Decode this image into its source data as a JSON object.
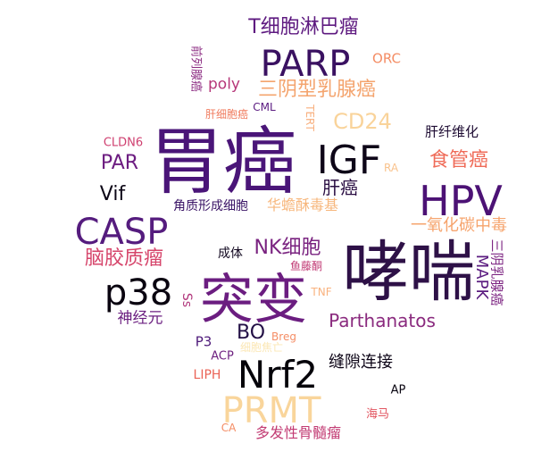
{
  "words": [
    {
      "id": "weiai",
      "text": "胃癌",
      "color": "#4a1578"
    },
    {
      "id": "xiaochuan",
      "text": "哮喘",
      "color": "#2e1147"
    },
    {
      "id": "tubian",
      "text": "突变",
      "color": "#6b1d80"
    },
    {
      "id": "hpv",
      "text": "HPV",
      "color": "#4c1275"
    },
    {
      "id": "igf",
      "text": "IGF",
      "color": "#0e0618"
    },
    {
      "id": "parp",
      "text": "PARP",
      "color": "#3a1161"
    },
    {
      "id": "casp",
      "text": "CASP",
      "color": "#551c7e"
    },
    {
      "id": "p38",
      "text": "p38",
      "color": "#0a0410"
    },
    {
      "id": "nrf2",
      "text": "Nrf2",
      "color": "#05030a"
    },
    {
      "id": "prmt",
      "text": "PRMT",
      "color": "#f9d59b"
    },
    {
      "id": "tlymph",
      "text": "T细胞淋巴瘤",
      "color": "#5e1a80"
    },
    {
      "id": "sanyin",
      "text": "三阴型乳腺癌",
      "color": "#f4a46e"
    },
    {
      "id": "cd24",
      "text": "CD24",
      "color": "#f9d39a"
    },
    {
      "id": "shiguan",
      "text": "食管癌",
      "color": "#ef6b58"
    },
    {
      "id": "ganai",
      "text": "肝癌",
      "color": "#2b0f44"
    },
    {
      "id": "par",
      "text": "PAR",
      "color": "#6d1d81"
    },
    {
      "id": "vif",
      "text": "Vif",
      "color": "#0c0616"
    },
    {
      "id": "jiaozhi",
      "text": "脑胶质瘤",
      "color": "#d6456b"
    },
    {
      "id": "nk",
      "text": "NK细胞",
      "color": "#7a2380"
    },
    {
      "id": "parth",
      "text": "Parthanatos",
      "color": "#8a2a7e"
    },
    {
      "id": "co",
      "text": "一氧化碳中毒",
      "color": "#f6a46d"
    },
    {
      "id": "huachan",
      "text": "华蟾酥毒基",
      "color": "#f7b77d"
    },
    {
      "id": "jiaozhixi",
      "text": "角质形成细胞",
      "color": "#3a1466"
    },
    {
      "id": "bo",
      "text": "BO",
      "color": "#231046"
    },
    {
      "id": "fengxi",
      "text": "缝隙连接",
      "color": "#0e0618"
    },
    {
      "id": "poly",
      "text": "poly",
      "color": "#b63779"
    },
    {
      "id": "orc",
      "text": "ORC",
      "color": "#f48d65"
    },
    {
      "id": "qianliexian",
      "text": "前列腺癌",
      "color": "#8b2a81"
    },
    {
      "id": "ganxibao",
      "text": "肝细胞癌",
      "color": "#f07c5f"
    },
    {
      "id": "cml",
      "text": "CML",
      "color": "#5a1a80"
    },
    {
      "id": "tert",
      "text": "TERT",
      "color": "#f8b07f"
    },
    {
      "id": "ganxianwei",
      "text": "肝纤维化",
      "color": "#1e0c33"
    },
    {
      "id": "cldn6",
      "text": "CLDN6",
      "color": "#cf4070"
    },
    {
      "id": "ra",
      "text": "RA",
      "color": "#f9c28c"
    },
    {
      "id": "chengti",
      "text": "成体",
      "color": "#120820"
    },
    {
      "id": "yuteng",
      "text": "鱼藤酮",
      "color": "#c13b75"
    },
    {
      "id": "shenjing",
      "text": "神经元",
      "color": "#6b1f80"
    },
    {
      "id": "ss",
      "text": "Ss",
      "color": "#b0347a"
    },
    {
      "id": "tnf",
      "text": "TNF",
      "color": "#f9b27e"
    },
    {
      "id": "mapk",
      "text": "MAPK",
      "color": "#5b1c80"
    },
    {
      "id": "sanyinru",
      "text": "三阴乳腺癌",
      "color": "#7d2582"
    },
    {
      "id": "p3",
      "text": "P3",
      "color": "#4e1a7a"
    },
    {
      "id": "breg",
      "text": "Breg",
      "color": "#f58e66"
    },
    {
      "id": "acp",
      "text": "ACP",
      "color": "#6f2381"
    },
    {
      "id": "liph",
      "text": "LIPH",
      "color": "#ea6356"
    },
    {
      "id": "faint",
      "text": "细胞焦亡",
      "color": "#fbe7b5"
    },
    {
      "id": "ap",
      "text": "AP",
      "color": "#0a0612"
    },
    {
      "id": "haima",
      "text": "海马",
      "color": "#e25560"
    },
    {
      "id": "ca",
      "text": "CA",
      "color": "#f48c64"
    },
    {
      "id": "duofa",
      "text": "多发性骨髓瘤",
      "color": "#c23b73"
    }
  ]
}
